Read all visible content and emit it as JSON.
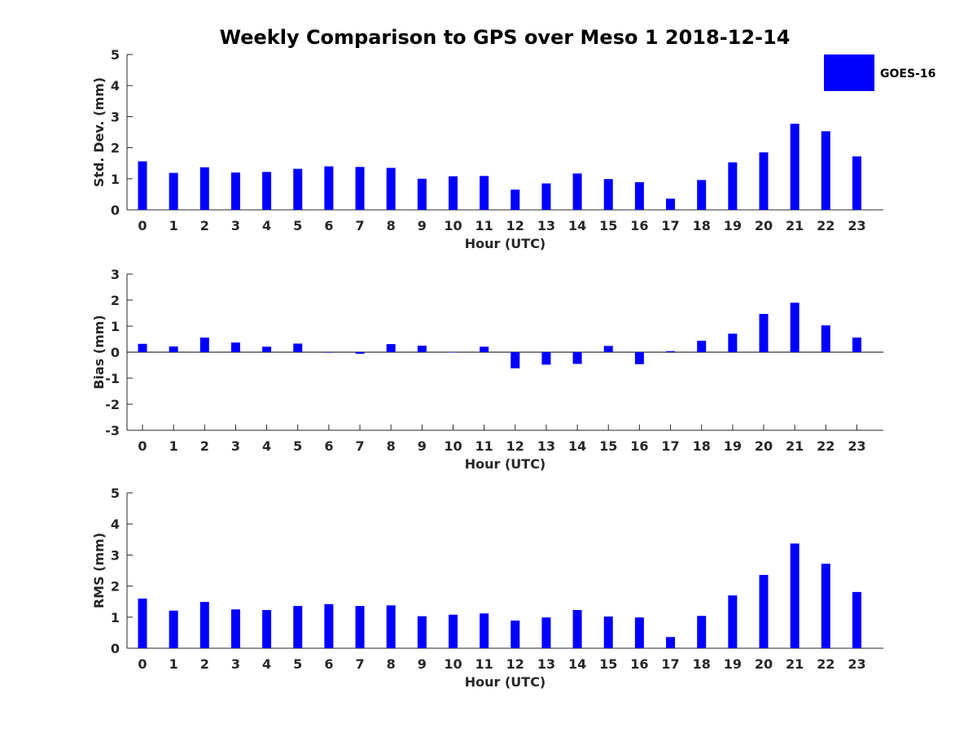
{
  "chart_data": {
    "type": "bar",
    "title": "Weekly Comparison to GPS over Meso 1 2018-12-14",
    "legend": {
      "entries": [
        "GOES-16"
      ],
      "placement": "top-right"
    },
    "colors": {
      "bar": "#0000ff",
      "axis": "#262626",
      "zero_line": "#000000"
    },
    "panels": [
      {
        "id": "std-dev",
        "type": "bar",
        "xlabel": "Hour (UTC)",
        "ylabel": "Std. Dev. (mm)",
        "ylim": [
          0,
          5
        ],
        "yticks": [
          0,
          1,
          2,
          3,
          4,
          5
        ],
        "categories": [
          "0",
          "1",
          "2",
          "3",
          "4",
          "5",
          "6",
          "7",
          "8",
          "9",
          "10",
          "11",
          "12",
          "13",
          "14",
          "15",
          "16",
          "17",
          "18",
          "19",
          "20",
          "21",
          "22",
          "23"
        ],
        "series": [
          {
            "name": "GOES-16",
            "values": [
              1.56,
              1.19,
              1.37,
              1.2,
              1.22,
              1.32,
              1.4,
              1.38,
              1.35,
              1.0,
              1.08,
              1.09,
              0.65,
              0.85,
              1.17,
              0.99,
              0.89,
              0.36,
              0.96,
              1.53,
              1.85,
              2.77,
              2.53,
              1.72
            ]
          }
        ]
      },
      {
        "id": "bias",
        "type": "bar",
        "xlabel": "Hour (UTC)",
        "ylabel": "Bias (mm)",
        "ylim": [
          -3,
          3
        ],
        "yticks": [
          -3,
          -2,
          -1,
          0,
          1,
          2,
          3
        ],
        "categories": [
          "0",
          "1",
          "2",
          "3",
          "4",
          "5",
          "6",
          "7",
          "8",
          "9",
          "10",
          "11",
          "12",
          "13",
          "14",
          "15",
          "16",
          "17",
          "18",
          "19",
          "20",
          "21",
          "22",
          "23"
        ],
        "series": [
          {
            "name": "GOES-16",
            "values": [
              0.32,
              0.22,
              0.56,
              0.37,
              0.21,
              0.33,
              -0.02,
              -0.06,
              0.31,
              0.25,
              -0.01,
              0.21,
              -0.62,
              -0.48,
              -0.45,
              0.24,
              -0.46,
              0.04,
              0.44,
              0.71,
              1.47,
              1.9,
              1.03,
              0.56
            ]
          }
        ]
      },
      {
        "id": "rms",
        "type": "bar",
        "xlabel": "Hour (UTC)",
        "ylabel": "RMS (mm)",
        "ylim": [
          0,
          5
        ],
        "yticks": [
          0,
          1,
          2,
          3,
          4,
          5
        ],
        "categories": [
          "0",
          "1",
          "2",
          "3",
          "4",
          "5",
          "6",
          "7",
          "8",
          "9",
          "10",
          "11",
          "12",
          "13",
          "14",
          "15",
          "16",
          "17",
          "18",
          "19",
          "20",
          "21",
          "22",
          "23"
        ],
        "series": [
          {
            "name": "GOES-16",
            "values": [
              1.6,
              1.21,
              1.49,
              1.25,
              1.23,
              1.36,
              1.42,
              1.36,
              1.38,
              1.03,
              1.08,
              1.12,
              0.89,
              0.99,
              1.23,
              1.02,
              0.99,
              0.36,
              1.04,
              1.7,
              2.36,
              3.37,
              2.72,
              1.81
            ]
          }
        ]
      }
    ]
  }
}
